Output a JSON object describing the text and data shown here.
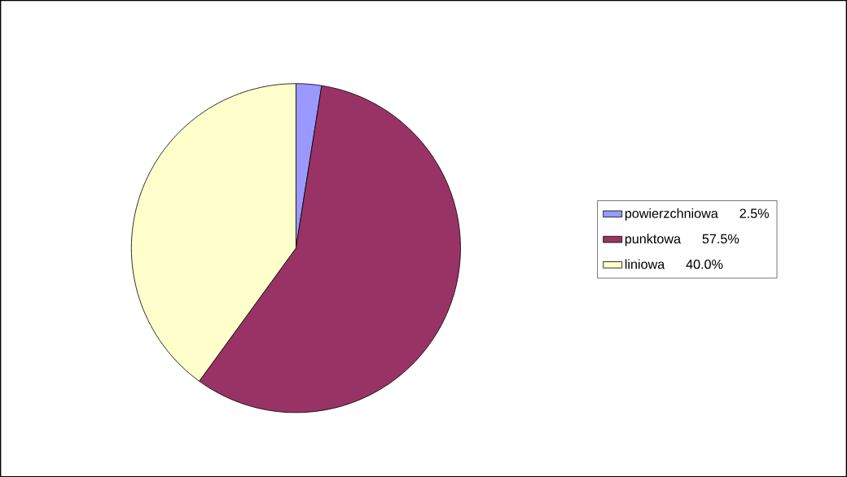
{
  "chart_data": {
    "type": "pie",
    "categories": [
      "powierzchniowa",
      "punktowa",
      "liniowa"
    ],
    "values": [
      2.5,
      57.5,
      40.0
    ],
    "value_labels": [
      "2.5%",
      "57.5%",
      "40.0%"
    ],
    "colors": [
      "#9999ff",
      "#993366",
      "#ffffcc"
    ],
    "legend": "right"
  }
}
